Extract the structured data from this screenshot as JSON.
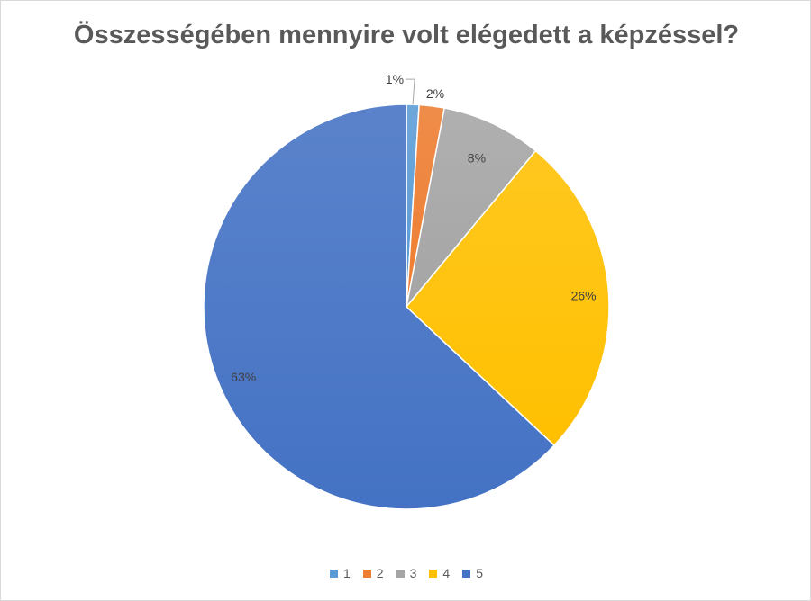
{
  "chart_data": {
    "type": "pie",
    "title": "Összességében mennyire volt elégedett a képzéssel?",
    "categories": [
      "1",
      "2",
      "3",
      "4",
      "5"
    ],
    "values": [
      1,
      2,
      8,
      26,
      63
    ],
    "labels": [
      "1%",
      "2%",
      "8%",
      "26%",
      "63%"
    ],
    "colors": [
      "#5b9bd5",
      "#ed7d31",
      "#a5a5a5",
      "#ffc000",
      "#4472c4"
    ],
    "legend_position": "bottom"
  }
}
